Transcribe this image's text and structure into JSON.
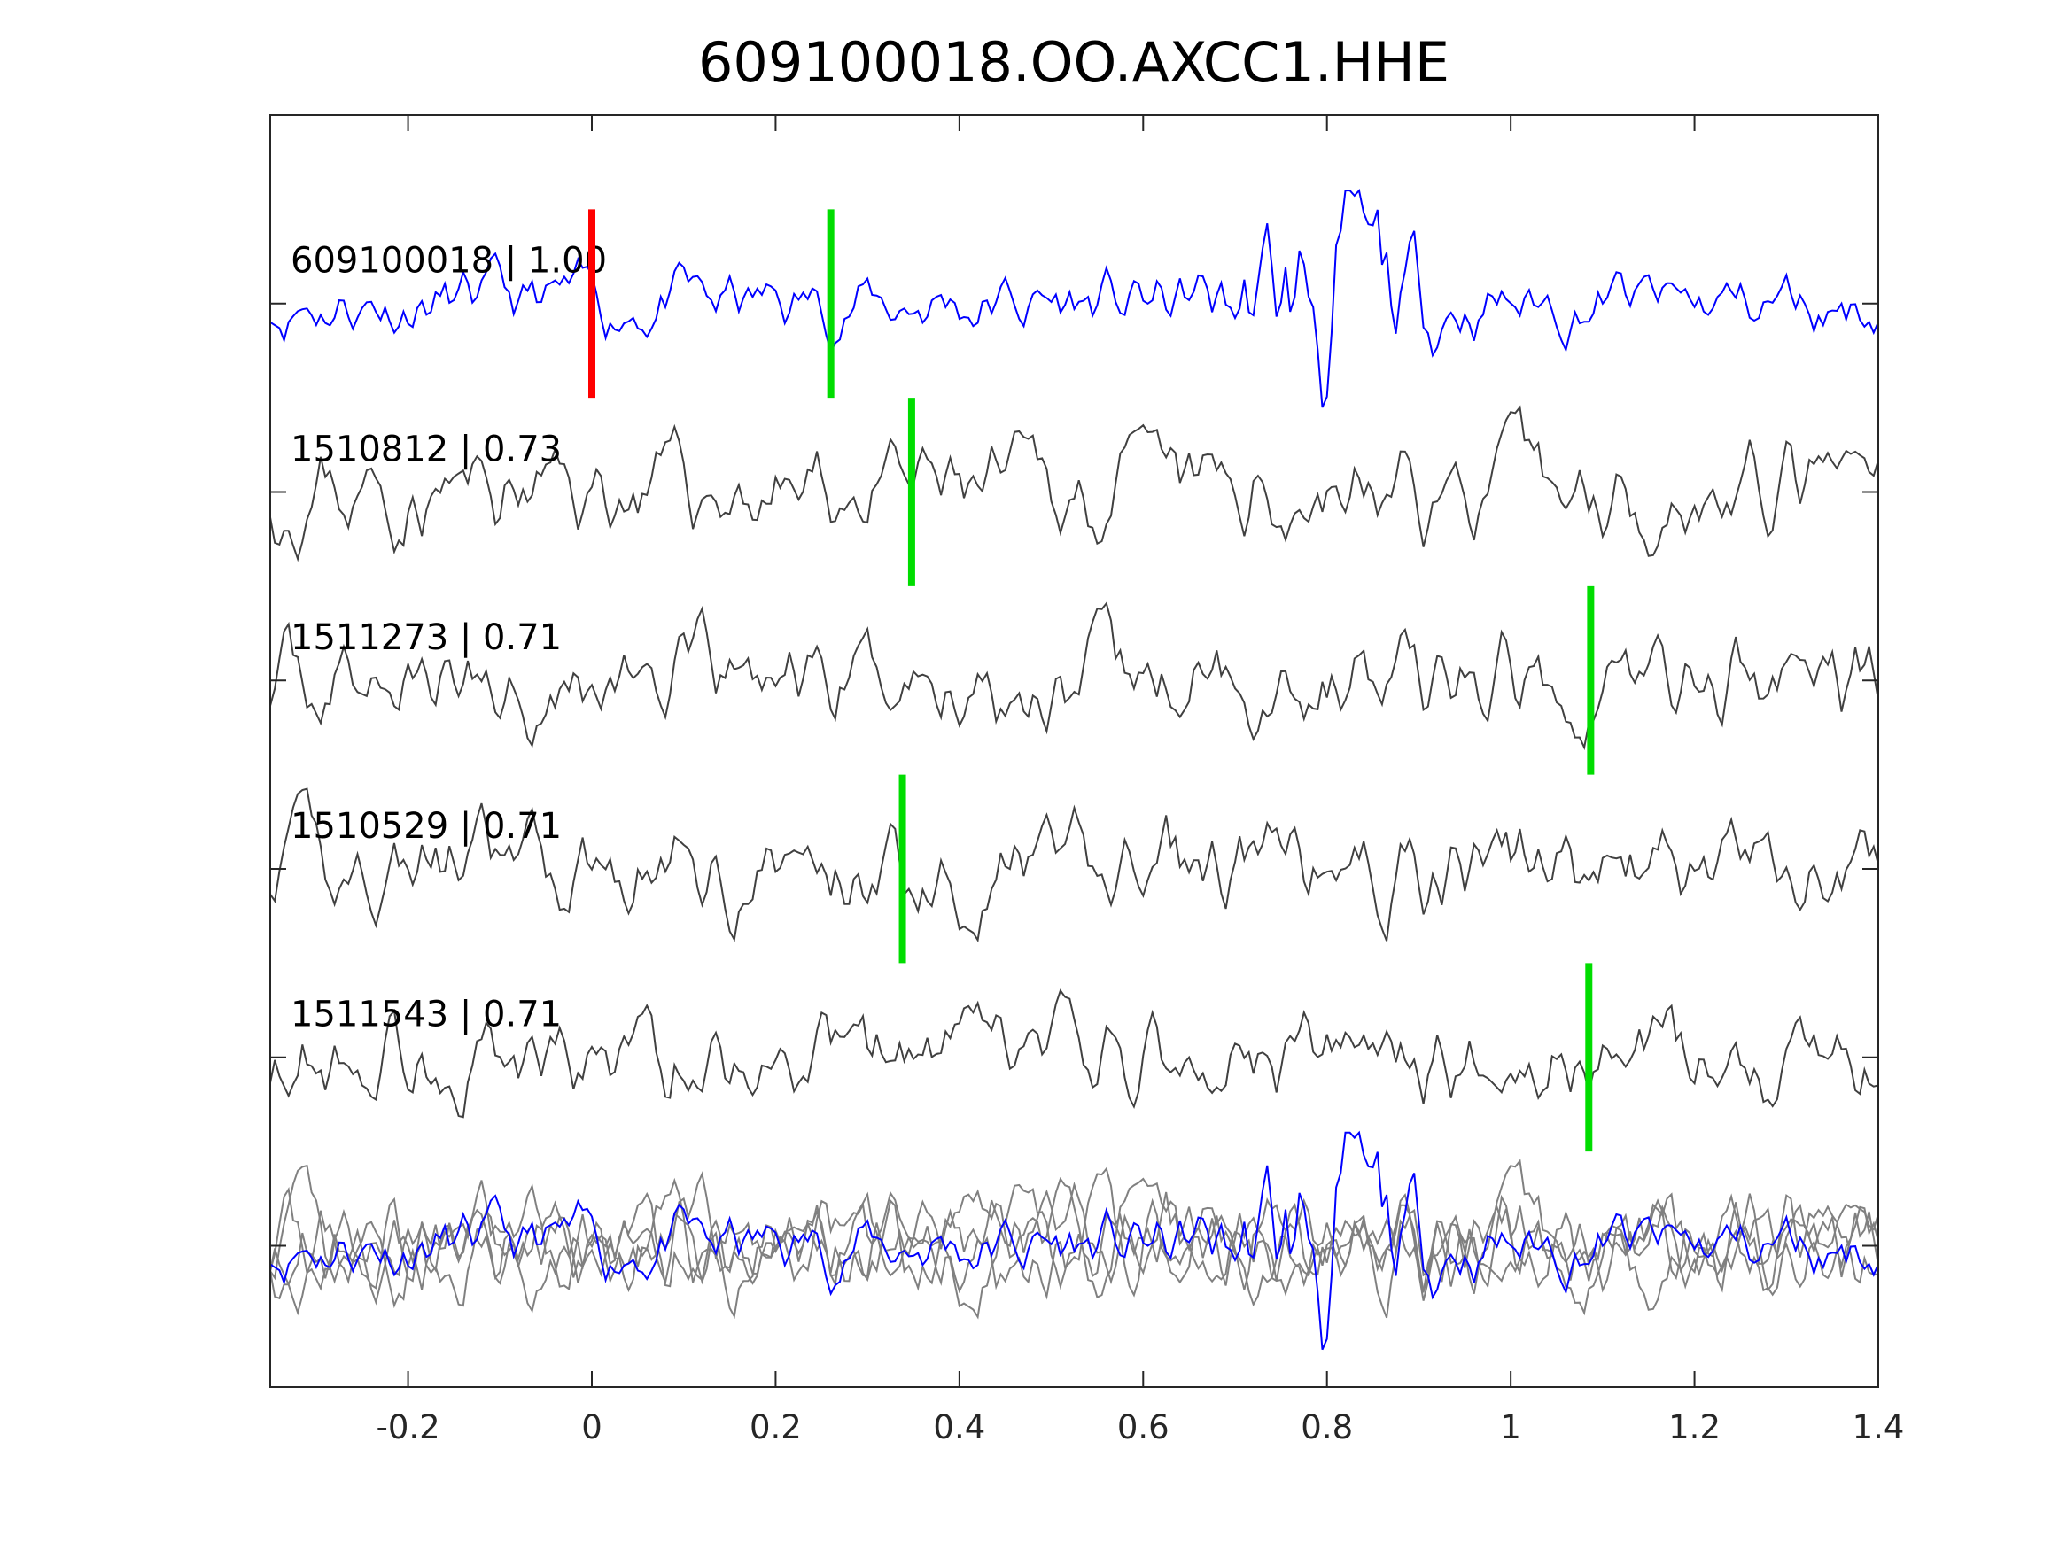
{
  "chart_data": {
    "type": "line",
    "title": "609100018.OO.AXCC1.HHE",
    "xlabel": "",
    "ylabel": "",
    "xlim": [
      -0.35,
      1.4
    ],
    "ylim": [
      0,
      6.75
    ],
    "y_direction": "reversed",
    "grid": false,
    "x_ticks": [
      "-0.2",
      "0",
      "0.2",
      "0.4",
      "0.6",
      "0.8",
      "1",
      "1.2",
      "1.4"
    ],
    "x_tick_values": [
      -0.2,
      0,
      0.2,
      0.4,
      0.6,
      0.8,
      1.0,
      1.2,
      1.4
    ],
    "sample_interval": 0.005,
    "colors": {
      "template": "#0000ff",
      "neighbor": "#404040",
      "stack": "#808080",
      "p_pick": "#ff0000",
      "s_pick": "#00dd00",
      "axis": "#262626"
    },
    "traces": [
      {
        "label": "609100018 | 1.00",
        "offset": 1,
        "role": "template",
        "amplitude": 0.22,
        "seed": 11,
        "burst_center": 0.8,
        "burst_gain": 2.6,
        "picks": [
          {
            "x": 0.0,
            "type": "p_pick"
          },
          {
            "x": 0.26,
            "type": "s_pick"
          }
        ]
      },
      {
        "label": "1510812 | 0.73",
        "offset": 2,
        "role": "neighbor",
        "amplitude": 0.3,
        "seed": 23,
        "picks": [
          {
            "x": 0.348,
            "type": "s_pick"
          }
        ]
      },
      {
        "label": "1511273 | 0.71",
        "offset": 3,
        "role": "neighbor",
        "amplitude": 0.3,
        "seed": 37,
        "picks": [
          {
            "x": 1.087,
            "type": "s_pick"
          }
        ]
      },
      {
        "label": "1510529 | 0.71",
        "offset": 4,
        "role": "neighbor",
        "amplitude": 0.3,
        "seed": 41,
        "picks": [
          {
            "x": 0.338,
            "type": "s_pick"
          }
        ]
      },
      {
        "label": "1511543 | 0.71",
        "offset": 5,
        "role": "neighbor",
        "amplitude": 0.3,
        "seed": 53,
        "picks": [
          {
            "x": 1.085,
            "type": "s_pick"
          }
        ]
      }
    ],
    "stack": {
      "offset": 6,
      "description_hidden": true
    }
  }
}
